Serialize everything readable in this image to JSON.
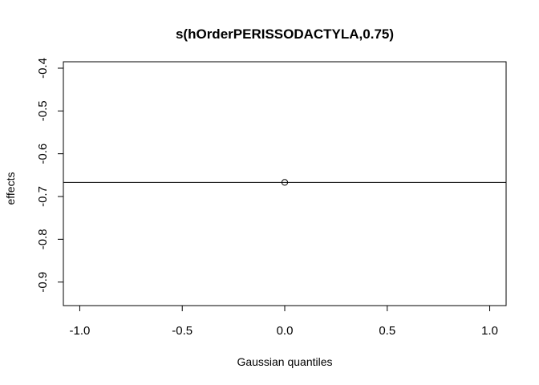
{
  "chart_data": {
    "type": "scatter",
    "title": "s(hOrderPERISSODACTYLA,0.75)",
    "xlabel": "Gaussian quantiles",
    "ylabel": "effects",
    "xlim": [
      -1.08,
      1.08
    ],
    "ylim": [
      -0.955,
      -0.385
    ],
    "x_ticks": [
      -1.0,
      -0.5,
      0.0,
      0.5,
      1.0
    ],
    "x_tick_labels": [
      "-1.0",
      "-0.5",
      "0.0",
      "0.5",
      "1.0"
    ],
    "y_ticks": [
      -0.9,
      -0.8,
      -0.7,
      -0.6,
      -0.5,
      -0.4
    ],
    "y_tick_labels": [
      "-0.9",
      "-0.8",
      "-0.7",
      "-0.6",
      "-0.5",
      "-0.4"
    ],
    "points": [
      {
        "x": 0.0,
        "y": -0.667
      }
    ],
    "hline": -0.667,
    "grid": false
  }
}
